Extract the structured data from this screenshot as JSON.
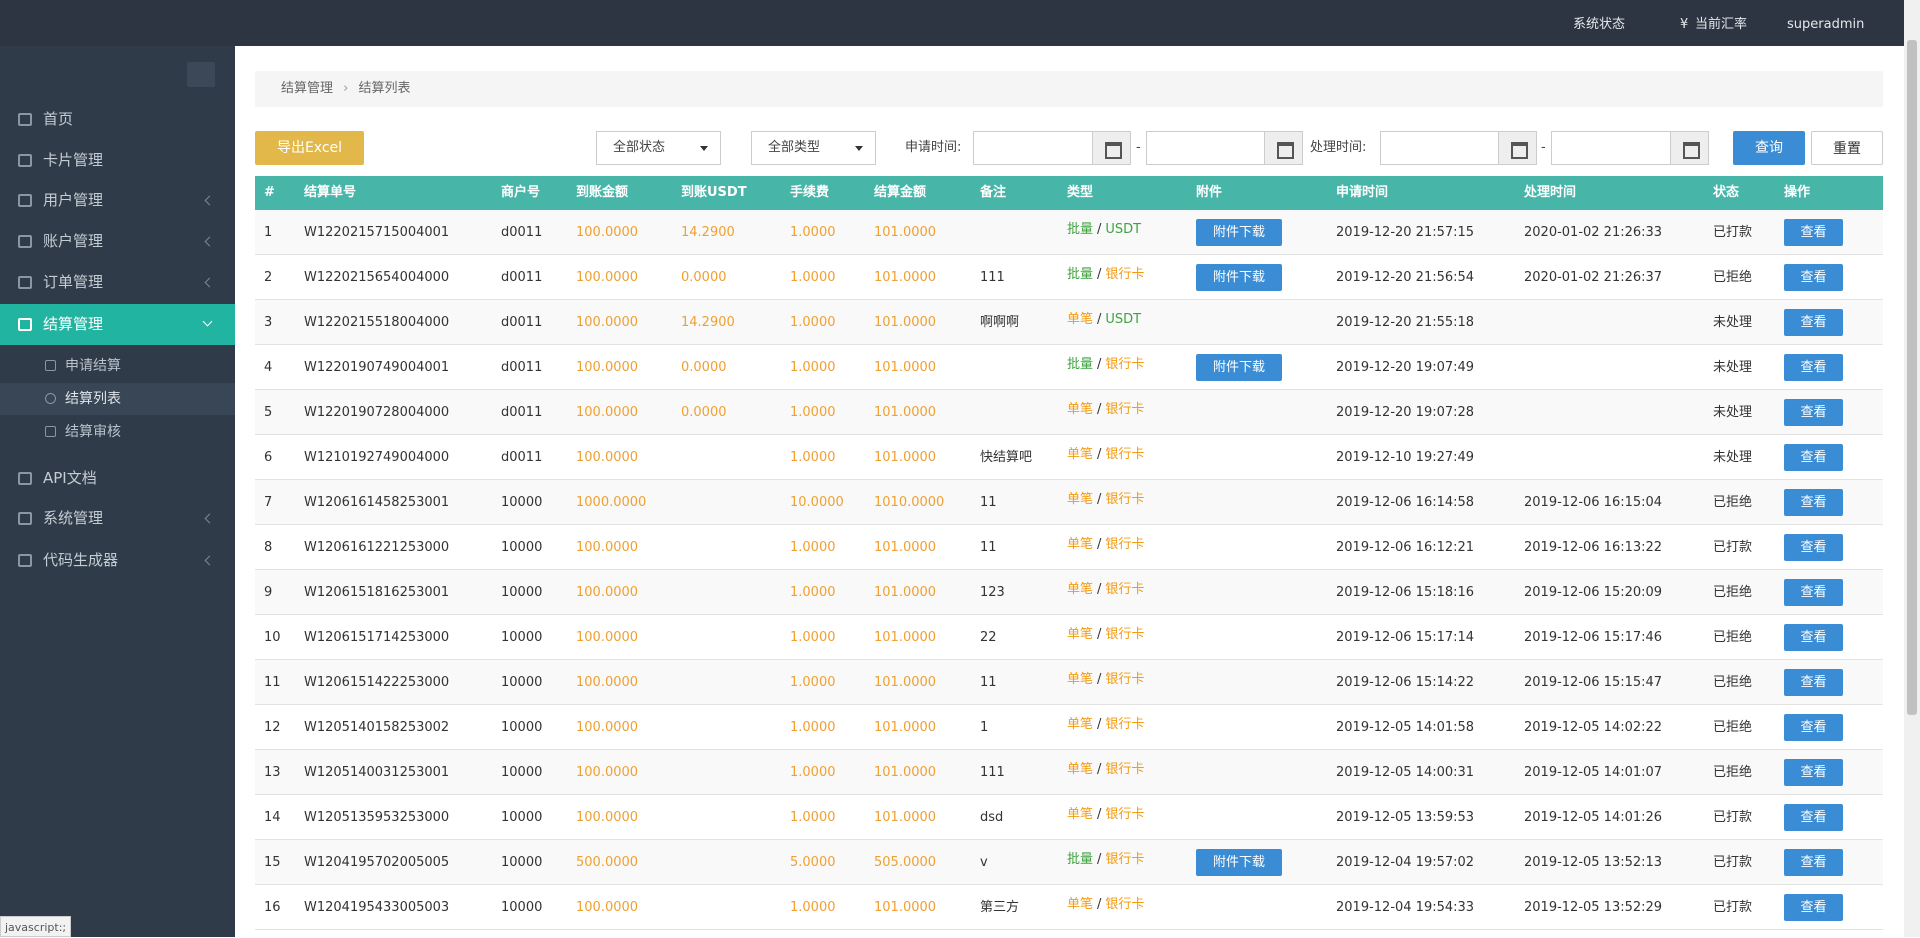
{
  "header": {
    "system_status": "系统状态",
    "rate_icon": "¥",
    "rate": "当前汇率",
    "user": "superadmin"
  },
  "sidebar": {
    "menu": [
      "首页",
      "卡片管理",
      "用户管理",
      "账户管理",
      "订单管理",
      "结算管理"
    ],
    "submenu": [
      "申请结算",
      "结算列表",
      "结算审核"
    ],
    "menu_after": [
      "API文档",
      "系统管理",
      "代码生成器"
    ]
  },
  "breadcrumb": [
    "结算管理",
    "结算列表"
  ],
  "toolbar": {
    "export": "导出Excel",
    "status_select": "全部状态",
    "type_select": "全部类型",
    "apply_time": "申请时间:",
    "process_time": "处理时间:",
    "range_sep": "-",
    "search": "查询",
    "reset": "重置"
  },
  "table": {
    "columns": [
      "#",
      "结算单号",
      "商户号",
      "到账金额",
      "到账USDT",
      "手续费",
      "结算金额",
      "备注",
      "类型",
      "附件",
      "申请时间",
      "处理时间",
      "状态",
      "操作"
    ],
    "type_separator": "/",
    "tag_colors": {
      "批量": "#3fa33f",
      "单笔": "#f39c12",
      "USDT": "#3fa33f",
      "银行卡": "#f39c12"
    },
    "rows": [
      {
        "no": "1",
        "order": "W1220215715004001",
        "merchant": "d0011",
        "amount": "100.0000",
        "usdt": "14.2900",
        "fee": "1.0000",
        "settle": "101.0000",
        "mode": "批量",
        "channel": "USDT",
        "attachment": "附件下载",
        "apply_time": "2019-12-20 21:57:15",
        "process_time": "2020-01-02 21:26:33",
        "status": "已打款",
        "action": "查看"
      },
      {
        "no": "2",
        "order": "W1220215654004000",
        "merchant": "d0011",
        "amount": "100.0000",
        "usdt": "0.0000",
        "fee": "1.0000",
        "settle": "101.0000",
        "remark": "111",
        "mode": "批量",
        "channel": "银行卡",
        "attachment": "附件下载",
        "apply_time": "2019-12-20 21:56:54",
        "process_time": "2020-01-02 21:26:37",
        "status": "已拒绝",
        "action": "查看"
      },
      {
        "no": "3",
        "order": "W1220215518004000",
        "merchant": "d0011",
        "amount": "100.0000",
        "usdt": "14.2900",
        "fee": "1.0000",
        "settle": "101.0000",
        "remark": "啊啊啊",
        "mode": "单笔",
        "channel": "USDT",
        "apply_time": "2019-12-20 21:55:18",
        "status": "未处理",
        "action": "查看"
      },
      {
        "no": "4",
        "order": "W1220190749004001",
        "merchant": "d0011",
        "amount": "100.0000",
        "usdt": "0.0000",
        "fee": "1.0000",
        "settle": "101.0000",
        "mode": "批量",
        "channel": "银行卡",
        "attachment": "附件下载",
        "apply_time": "2019-12-20 19:07:49",
        "status": "未处理",
        "action": "查看"
      },
      {
        "no": "5",
        "order": "W1220190728004000",
        "merchant": "d0011",
        "amount": "100.0000",
        "usdt": "0.0000",
        "fee": "1.0000",
        "settle": "101.0000",
        "mode": "单笔",
        "channel": "银行卡",
        "apply_time": "2019-12-20 19:07:28",
        "status": "未处理",
        "action": "查看"
      },
      {
        "no": "6",
        "order": "W1210192749004000",
        "merchant": "d0011",
        "amount": "100.0000",
        "fee": "1.0000",
        "settle": "101.0000",
        "remark": "快结算吧",
        "mode": "单笔",
        "channel": "银行卡",
        "apply_time": "2019-12-10 19:27:49",
        "status": "未处理",
        "action": "查看"
      },
      {
        "no": "7",
        "order": "W1206161458253001",
        "merchant": "10000",
        "amount": "1000.0000",
        "fee": "10.0000",
        "settle": "1010.0000",
        "remark": "11",
        "mode": "单笔",
        "channel": "银行卡",
        "apply_time": "2019-12-06 16:14:58",
        "process_time": "2019-12-06 16:15:04",
        "status": "已拒绝",
        "action": "查看"
      },
      {
        "no": "8",
        "order": "W1206161221253000",
        "merchant": "10000",
        "amount": "100.0000",
        "fee": "1.0000",
        "settle": "101.0000",
        "remark": "11",
        "mode": "单笔",
        "channel": "银行卡",
        "apply_time": "2019-12-06 16:12:21",
        "process_time": "2019-12-06 16:13:22",
        "status": "已打款",
        "action": "查看"
      },
      {
        "no": "9",
        "order": "W1206151816253001",
        "merchant": "10000",
        "amount": "100.0000",
        "fee": "1.0000",
        "settle": "101.0000",
        "remark": "123",
        "mode": "单笔",
        "channel": "银行卡",
        "apply_time": "2019-12-06 15:18:16",
        "process_time": "2019-12-06 15:20:09",
        "status": "已拒绝",
        "action": "查看"
      },
      {
        "no": "10",
        "order": "W1206151714253000",
        "merchant": "10000",
        "amount": "100.0000",
        "fee": "1.0000",
        "settle": "101.0000",
        "remark": "22",
        "mode": "单笔",
        "channel": "银行卡",
        "apply_time": "2019-12-06 15:17:14",
        "process_time": "2019-12-06 15:17:46",
        "status": "已拒绝",
        "action": "查看"
      },
      {
        "no": "11",
        "order": "W1206151422253000",
        "merchant": "10000",
        "amount": "100.0000",
        "fee": "1.0000",
        "settle": "101.0000",
        "remark": "11",
        "mode": "单笔",
        "channel": "银行卡",
        "apply_time": "2019-12-06 15:14:22",
        "process_time": "2019-12-06 15:15:47",
        "status": "已拒绝",
        "action": "查看"
      },
      {
        "no": "12",
        "order": "W1205140158253002",
        "merchant": "10000",
        "amount": "100.0000",
        "fee": "1.0000",
        "settle": "101.0000",
        "remark": "1",
        "mode": "单笔",
        "channel": "银行卡",
        "apply_time": "2019-12-05 14:01:58",
        "process_time": "2019-12-05 14:02:22",
        "status": "已拒绝",
        "action": "查看"
      },
      {
        "no": "13",
        "order": "W1205140031253001",
        "merchant": "10000",
        "amount": "100.0000",
        "fee": "1.0000",
        "settle": "101.0000",
        "remark": "111",
        "mode": "单笔",
        "channel": "银行卡",
        "apply_time": "2019-12-05 14:00:31",
        "process_time": "2019-12-05 14:01:07",
        "status": "已拒绝",
        "action": "查看"
      },
      {
        "no": "14",
        "order": "W1205135953253000",
        "merchant": "10000",
        "amount": "100.0000",
        "fee": "1.0000",
        "settle": "101.0000",
        "remark": "dsd",
        "mode": "单笔",
        "channel": "银行卡",
        "apply_time": "2019-12-05 13:59:53",
        "process_time": "2019-12-05 14:01:26",
        "status": "已打款",
        "action": "查看"
      },
      {
        "no": "15",
        "order": "W1204195702005005",
        "merchant": "10000",
        "amount": "500.0000",
        "fee": "5.0000",
        "settle": "505.0000",
        "remark": "v",
        "mode": "批量",
        "channel": "银行卡",
        "attachment": "附件下载",
        "apply_time": "2019-12-04 19:57:02",
        "process_time": "2019-12-05 13:52:13",
        "status": "已打款",
        "action": "查看"
      },
      {
        "no": "16",
        "order": "W1204195433005003",
        "merchant": "10000",
        "amount": "100.0000",
        "fee": "1.0000",
        "settle": "101.0000",
        "remark": "第三方",
        "mode": "单笔",
        "channel": "银行卡",
        "apply_time": "2019-12-04 19:54:33",
        "process_time": "2019-12-05 13:52:29",
        "status": "已打款",
        "action": "查看"
      }
    ]
  },
  "status_bar": "javascript:;"
}
